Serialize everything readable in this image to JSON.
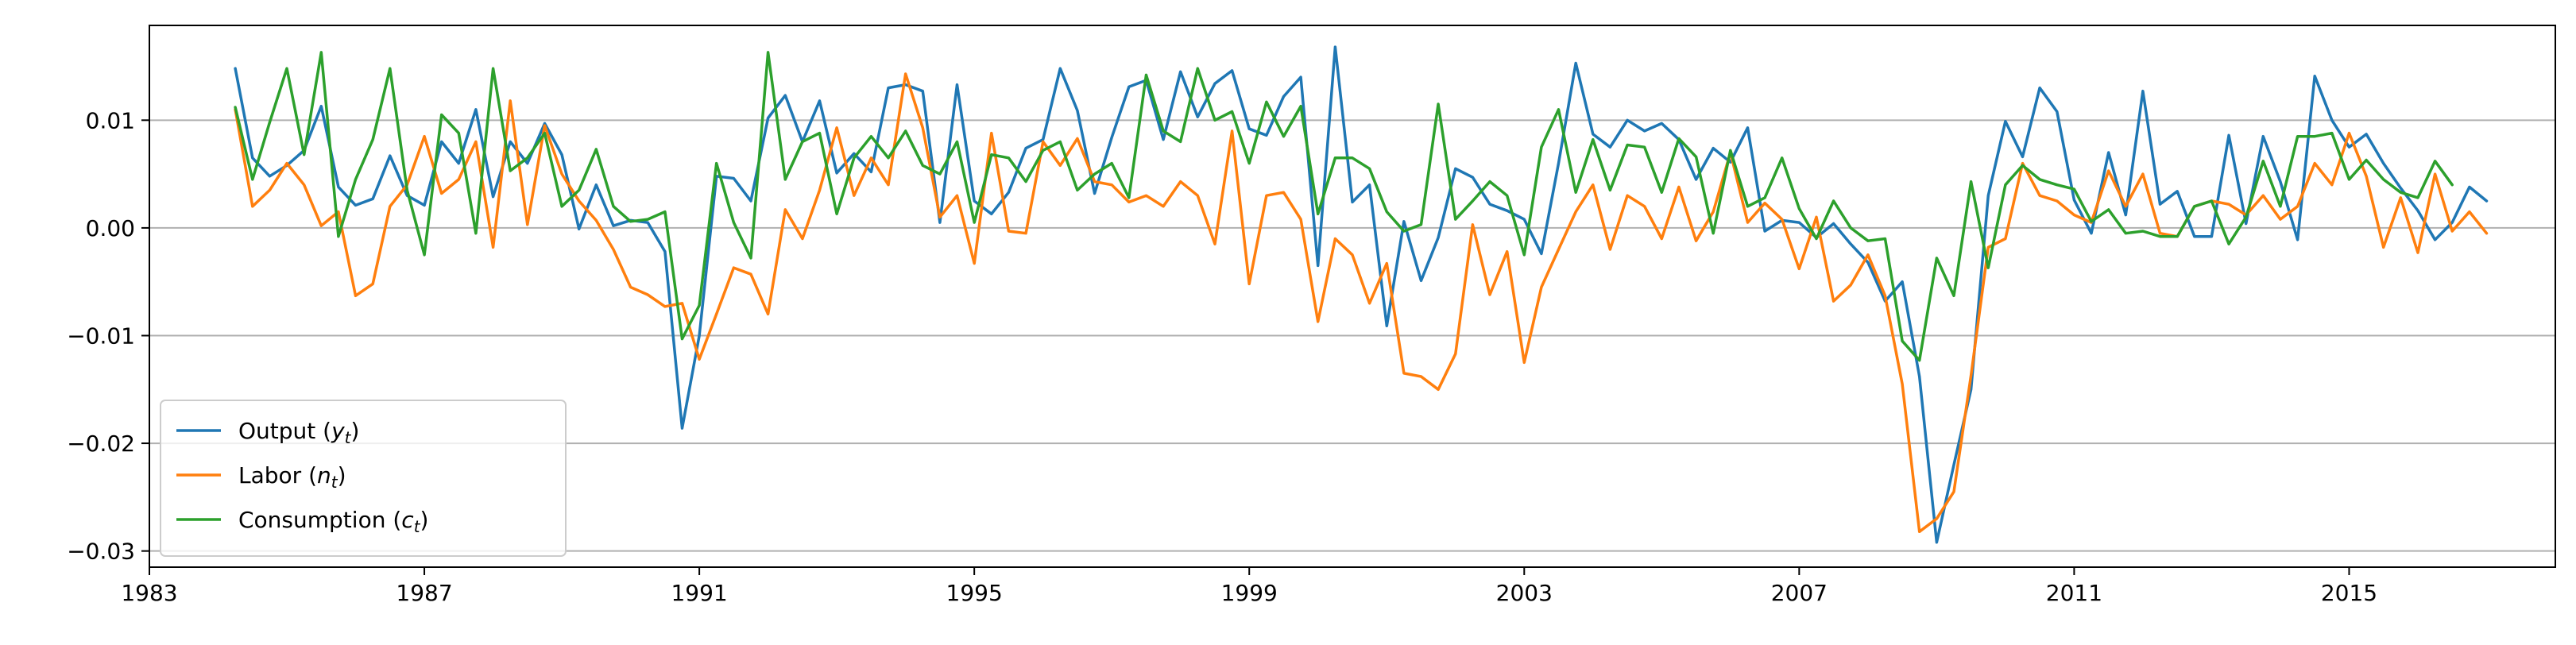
{
  "chart_data": {
    "type": "line",
    "title": "",
    "xlabel": "",
    "ylabel": "",
    "xlim": [
      1983.0,
      2018.0
    ],
    "ylim": [
      -0.0315,
      0.0188
    ],
    "xticks": [
      1983,
      1987,
      1991,
      1995,
      1999,
      2003,
      2007,
      2011,
      2015
    ],
    "xtick_labels": [
      "1983",
      "1987",
      "1991",
      "1995",
      "1999",
      "2003",
      "2007",
      "2011",
      "2015"
    ],
    "yticks": [
      -0.03,
      -0.02,
      -0.01,
      0.0,
      0.01
    ],
    "ytick_labels": [
      "−0.03",
      "−0.02",
      "−0.01",
      "0.00",
      "0.01"
    ],
    "grid": "horizontal",
    "legend_position": "lower-left",
    "x_start": 1984.25,
    "x_step": 0.25,
    "series": [
      {
        "name": "Output (y_t)",
        "legend_parts": [
          "Output (",
          "y",
          "t",
          ")"
        ],
        "color": "#1f77b4",
        "values": [
          0.0148,
          0.0065,
          0.0048,
          0.0058,
          0.0072,
          0.0113,
          0.0038,
          0.0021,
          0.0027,
          0.0067,
          0.003,
          0.0021,
          0.008,
          0.006,
          0.011,
          0.0029,
          0.008,
          0.006,
          0.0097,
          0.0068,
          -0.0001,
          0.004,
          0.0002,
          0.0007,
          0.0005,
          -0.0022,
          -0.0186,
          -0.01,
          0.0048,
          0.0046,
          0.0025,
          0.0102,
          0.0123,
          0.008,
          0.0118,
          0.0051,
          0.0069,
          0.0052,
          0.013,
          0.0133,
          0.0127,
          0.0005,
          0.0133,
          0.0025,
          0.0013,
          0.0033,
          0.0074,
          0.0082,
          0.0148,
          0.0109,
          0.0032,
          0.0084,
          0.0131,
          0.0137,
          0.0082,
          0.0145,
          0.0103,
          0.0134,
          0.0146,
          0.0092,
          0.0086,
          0.0122,
          0.014,
          -0.0035,
          0.0168,
          0.0024,
          0.004,
          -0.0091,
          0.0006,
          -0.0049,
          -0.0009,
          0.0055,
          0.0047,
          0.0022,
          0.0016,
          0.0008,
          -0.0024,
          0.006,
          0.0153,
          0.0087,
          0.0075,
          0.01,
          0.009,
          0.0097,
          0.0082,
          0.0045,
          0.0074,
          0.0061,
          0.0093,
          -0.0003,
          0.0007,
          0.0005,
          -0.0009,
          0.0004,
          -0.0015,
          -0.0032,
          -0.0068,
          -0.005,
          -0.0138,
          -0.0292,
          -0.022,
          -0.015,
          0.003,
          0.0099,
          0.0066,
          0.013,
          0.0108,
          0.0026,
          -0.0005,
          0.007,
          0.0012,
          0.0127,
          0.0022,
          0.0034,
          -0.0008,
          -0.0008,
          0.0086,
          0.0004,
          0.0085,
          0.0043,
          -0.0011,
          0.0141,
          0.01,
          0.0075,
          0.0087,
          0.006,
          0.0037,
          0.0016,
          -0.0011,
          0.0005,
          0.0038,
          0.0025
        ]
      },
      {
        "name": "Labor (n_t)",
        "legend_parts": [
          "Labor (",
          "n",
          "t",
          ")"
        ],
        "color": "#ff7f0e",
        "values": [
          0.011,
          0.002,
          0.0035,
          0.006,
          0.004,
          0.0002,
          0.0015,
          -0.0063,
          -0.0052,
          0.002,
          0.004,
          0.0085,
          0.0032,
          0.0045,
          0.008,
          -0.0018,
          0.0118,
          0.0003,
          0.0095,
          0.005,
          0.0025,
          0.0007,
          -0.002,
          -0.0055,
          -0.0062,
          -0.0073,
          -0.007,
          -0.0122,
          -0.008,
          -0.0037,
          -0.0043,
          -0.008,
          0.0017,
          -0.001,
          0.0035,
          0.0093,
          0.003,
          0.0065,
          0.004,
          0.0143,
          0.0093,
          0.001,
          0.003,
          -0.0033,
          0.0088,
          -0.0003,
          -0.0005,
          0.008,
          0.0058,
          0.0083,
          0.0043,
          0.004,
          0.0024,
          0.003,
          0.002,
          0.0043,
          0.003,
          -0.0015,
          0.009,
          -0.0052,
          0.003,
          0.0033,
          0.0008,
          -0.0087,
          -0.001,
          -0.0025,
          -0.007,
          -0.0033,
          -0.0135,
          -0.0138,
          -0.015,
          -0.0117,
          0.0003,
          -0.0062,
          -0.0022,
          -0.0125,
          -0.0055,
          -0.002,
          0.0015,
          0.004,
          -0.002,
          0.003,
          0.002,
          -0.001,
          0.0038,
          -0.0012,
          0.0015,
          0.007,
          0.0005,
          0.0023,
          0.0008,
          -0.0038,
          0.001,
          -0.0068,
          -0.0053,
          -0.0025,
          -0.0063,
          -0.0145,
          -0.0282,
          -0.027,
          -0.0245,
          -0.0137,
          -0.0018,
          -0.001,
          0.006,
          0.003,
          0.0025,
          0.0012,
          0.0005,
          0.0053,
          0.002,
          0.005,
          -0.0005,
          -0.0008,
          0.002,
          0.0025,
          0.0022,
          0.0012,
          0.003,
          0.0008,
          0.002,
          0.006,
          0.004,
          0.0088,
          0.0048,
          -0.0018,
          0.0028,
          -0.0023,
          0.005,
          -0.0003,
          0.0015,
          -0.0005
        ]
      },
      {
        "name": "Consumption (c_t)",
        "legend_parts": [
          "Consumption (",
          "c",
          "t",
          ")"
        ],
        "color": "#2ca02c",
        "values": [
          0.0112,
          0.0045,
          0.0098,
          0.0148,
          0.0068,
          0.0163,
          -0.0008,
          0.0045,
          0.0082,
          0.0148,
          0.0035,
          -0.0025,
          0.0105,
          0.0088,
          -0.0005,
          0.0148,
          0.0053,
          0.0065,
          0.0088,
          0.002,
          0.0035,
          0.0073,
          0.002,
          0.0006,
          0.0008,
          0.0015,
          -0.0103,
          -0.0072,
          0.006,
          0.0005,
          -0.0028,
          0.0163,
          0.0045,
          0.008,
          0.0088,
          0.0013,
          0.0065,
          0.0085,
          0.0065,
          0.009,
          0.0058,
          0.005,
          0.008,
          0.0005,
          0.0068,
          0.0065,
          0.0043,
          0.0072,
          0.008,
          0.0035,
          0.005,
          0.006,
          0.0028,
          0.0142,
          0.009,
          0.008,
          0.0148,
          0.01,
          0.0108,
          0.006,
          0.0117,
          0.0085,
          0.0113,
          0.0013,
          0.0065,
          0.0065,
          0.0055,
          0.0015,
          -0.0003,
          0.0003,
          0.0115,
          0.0008,
          0.0025,
          0.0043,
          0.003,
          -0.0025,
          0.0075,
          0.011,
          0.0033,
          0.0082,
          0.0035,
          0.0077,
          0.0075,
          0.0033,
          0.0083,
          0.0066,
          -0.0005,
          0.0072,
          0.002,
          0.0028,
          0.0065,
          0.0018,
          -0.001,
          0.0025,
          0.0,
          -0.0012,
          -0.001,
          -0.0105,
          -0.0123,
          -0.0028,
          -0.0063,
          0.0043,
          -0.0037,
          0.004,
          0.0058,
          0.0045,
          0.004,
          0.0036,
          0.0006,
          0.0017,
          -0.0005,
          -0.0003,
          -0.0008,
          -0.0008,
          0.002,
          0.0025,
          -0.0015,
          0.001,
          0.0062,
          0.002,
          0.0085,
          0.0085,
          0.0088,
          0.0045,
          0.0063,
          0.0045,
          0.0033,
          0.0028,
          0.0062,
          0.004
        ]
      }
    ]
  }
}
